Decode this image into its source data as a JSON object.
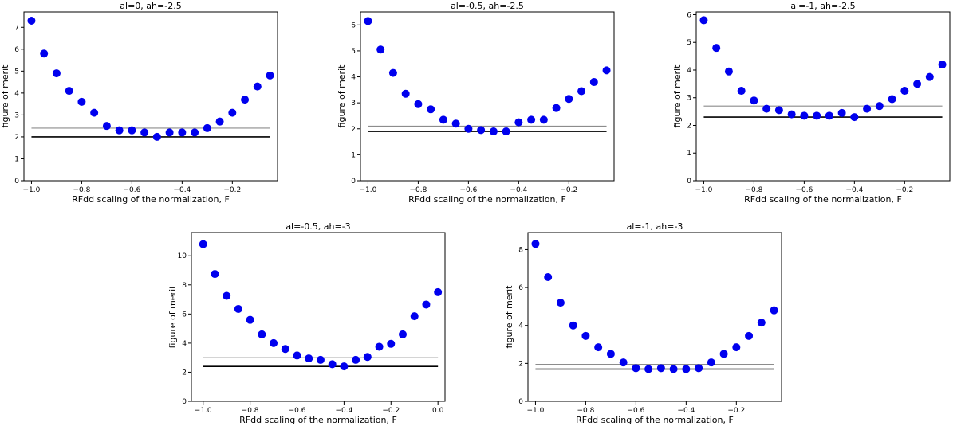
{
  "chart_data": [
    {
      "type": "scatter",
      "title": "al=0, ah=-2.5",
      "xlabel": "RFdd scaling of the normalization, F",
      "ylabel": "figure of merit",
      "xlim": [
        -1.03,
        -0.02
      ],
      "ylim": [
        0,
        7.7
      ],
      "xticks": [
        -1.0,
        -0.8,
        -0.6,
        -0.4,
        -0.2
      ],
      "xtick_labels": [
        "−1.0",
        "−0.8",
        "−0.6",
        "−0.4",
        "−0.2"
      ],
      "yticks": [
        0,
        1,
        2,
        3,
        4,
        5,
        6,
        7
      ],
      "ytick_labels": [
        "0",
        "1",
        "2",
        "3",
        "4",
        "5",
        "6",
        "7"
      ],
      "x": [
        -1.0,
        -0.95,
        -0.9,
        -0.85,
        -0.8,
        -0.75,
        -0.7,
        -0.65,
        -0.6,
        -0.55,
        -0.5,
        -0.45,
        -0.4,
        -0.35,
        -0.3,
        -0.25,
        -0.2,
        -0.15,
        -0.1,
        -0.05
      ],
      "y": [
        7.3,
        5.8,
        4.9,
        4.1,
        3.6,
        3.1,
        2.5,
        2.3,
        2.3,
        2.2,
        2.0,
        2.2,
        2.2,
        2.2,
        2.4,
        2.7,
        3.1,
        3.7,
        4.3,
        4.8
      ],
      "hlines": [
        {
          "y": 2.4,
          "color": "#8c8c8c"
        },
        {
          "y": 2.0,
          "color": "#000000"
        }
      ],
      "marker_color": "#0000ee"
    },
    {
      "type": "scatter",
      "title": "al=-0.5, ah=-2.5",
      "xlabel": "RFdd scaling of the normalization, F",
      "ylabel": "figure of merit",
      "xlim": [
        -1.03,
        -0.02
      ],
      "ylim": [
        0,
        6.5
      ],
      "xticks": [
        -1.0,
        -0.8,
        -0.6,
        -0.4,
        -0.2
      ],
      "xtick_labels": [
        "−1.0",
        "−0.8",
        "−0.6",
        "−0.4",
        "−0.2"
      ],
      "yticks": [
        0,
        1,
        2,
        3,
        4,
        5,
        6
      ],
      "ytick_labels": [
        "0",
        "1",
        "2",
        "3",
        "4",
        "5",
        "6"
      ],
      "x": [
        -1.0,
        -0.95,
        -0.9,
        -0.85,
        -0.8,
        -0.75,
        -0.7,
        -0.65,
        -0.6,
        -0.55,
        -0.5,
        -0.45,
        -0.4,
        -0.35,
        -0.3,
        -0.25,
        -0.2,
        -0.15,
        -0.1,
        -0.05
      ],
      "y": [
        6.15,
        5.05,
        4.15,
        3.35,
        2.95,
        2.75,
        2.35,
        2.2,
        2.0,
        1.95,
        1.9,
        1.9,
        2.25,
        2.35,
        2.35,
        2.8,
        3.15,
        3.45,
        3.8,
        4.25
      ],
      "hlines": [
        {
          "y": 2.1,
          "color": "#8c8c8c"
        },
        {
          "y": 1.9,
          "color": "#000000"
        }
      ],
      "marker_color": "#0000ee"
    },
    {
      "type": "scatter",
      "title": "al=-1, ah=-2.5",
      "xlabel": "RFdd scaling of the normalization, F",
      "ylabel": "figure of merit",
      "xlim": [
        -1.03,
        -0.02
      ],
      "ylim": [
        0,
        6.1
      ],
      "xticks": [
        -1.0,
        -0.8,
        -0.6,
        -0.4,
        -0.2
      ],
      "xtick_labels": [
        "−1.0",
        "−0.8",
        "−0.6",
        "−0.4",
        "−0.2"
      ],
      "yticks": [
        0,
        1,
        2,
        3,
        4,
        5,
        6
      ],
      "ytick_labels": [
        "0",
        "1",
        "2",
        "3",
        "4",
        "5",
        "6"
      ],
      "x": [
        -1.0,
        -0.95,
        -0.9,
        -0.85,
        -0.8,
        -0.75,
        -0.7,
        -0.65,
        -0.6,
        -0.55,
        -0.5,
        -0.45,
        -0.4,
        -0.35,
        -0.3,
        -0.25,
        -0.2,
        -0.15,
        -0.1,
        -0.05
      ],
      "y": [
        5.8,
        4.8,
        3.95,
        3.25,
        2.9,
        2.6,
        2.55,
        2.4,
        2.35,
        2.35,
        2.35,
        2.45,
        2.3,
        2.6,
        2.7,
        2.95,
        3.25,
        3.5,
        3.75,
        4.2
      ],
      "hlines": [
        {
          "y": 2.7,
          "color": "#8c8c8c"
        },
        {
          "y": 2.3,
          "color": "#000000"
        }
      ],
      "marker_color": "#0000ee"
    },
    {
      "type": "scatter",
      "title": "al=-0.5, ah=-3",
      "xlabel": "RFdd scaling of the normalization, F",
      "ylabel": "figure of merit",
      "xlim": [
        -1.05,
        0.03
      ],
      "ylim": [
        0,
        11.6
      ],
      "xticks": [
        -1.0,
        -0.8,
        -0.6,
        -0.4,
        -0.2,
        0.0
      ],
      "xtick_labels": [
        "−1.0",
        "−0.8",
        "−0.6",
        "−0.4",
        "−0.2",
        "0.0"
      ],
      "yticks": [
        0,
        2,
        4,
        6,
        8,
        10
      ],
      "ytick_labels": [
        "0",
        "2",
        "4",
        "6",
        "8",
        "10"
      ],
      "x": [
        -1.0,
        -0.95,
        -0.9,
        -0.85,
        -0.8,
        -0.75,
        -0.7,
        -0.65,
        -0.6,
        -0.55,
        -0.5,
        -0.45,
        -0.4,
        -0.35,
        -0.3,
        -0.25,
        -0.2,
        -0.15,
        -0.1,
        -0.05,
        0.0
      ],
      "y": [
        10.8,
        8.75,
        7.25,
        6.35,
        5.6,
        4.6,
        4.0,
        3.6,
        3.15,
        2.95,
        2.85,
        2.55,
        2.4,
        2.85,
        3.05,
        3.75,
        3.95,
        4.6,
        5.85,
        6.65,
        7.5
      ],
      "hlines": [
        {
          "y": 3.0,
          "color": "#8c8c8c"
        },
        {
          "y": 2.4,
          "color": "#000000"
        }
      ],
      "marker_color": "#0000ee"
    },
    {
      "type": "scatter",
      "title": "al=-1, ah=-3",
      "xlabel": "RFdd scaling of the normalization, F",
      "ylabel": "figure of merit",
      "xlim": [
        -1.03,
        -0.02
      ],
      "ylim": [
        0,
        8.9
      ],
      "xticks": [
        -1.0,
        -0.8,
        -0.6,
        -0.4,
        -0.2
      ],
      "xtick_labels": [
        "−1.0",
        "−0.8",
        "−0.6",
        "−0.4",
        "−0.2"
      ],
      "yticks": [
        0,
        2,
        4,
        6,
        8
      ],
      "ytick_labels": [
        "0",
        "2",
        "4",
        "6",
        "8"
      ],
      "x": [
        -1.0,
        -0.95,
        -0.9,
        -0.85,
        -0.8,
        -0.75,
        -0.7,
        -0.65,
        -0.6,
        -0.55,
        -0.5,
        -0.45,
        -0.4,
        -0.35,
        -0.3,
        -0.25,
        -0.2,
        -0.15,
        -0.1,
        -0.05
      ],
      "y": [
        8.3,
        6.55,
        5.2,
        4.0,
        3.45,
        2.85,
        2.5,
        2.05,
        1.75,
        1.7,
        1.75,
        1.7,
        1.7,
        1.75,
        2.05,
        2.5,
        2.85,
        3.45,
        4.15,
        4.8
      ],
      "hlines": [
        {
          "y": 1.95,
          "color": "#8c8c8c"
        },
        {
          "y": 1.7,
          "color": "#000000"
        }
      ],
      "marker_color": "#0000ee"
    }
  ]
}
